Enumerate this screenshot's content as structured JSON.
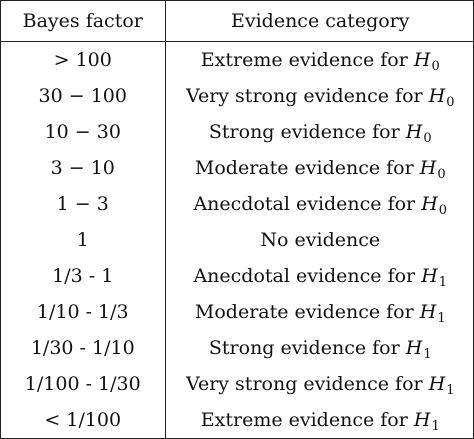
{
  "table": {
    "headers": [
      "Bayes factor",
      "Evidence category"
    ],
    "rows": [
      {
        "bf": "> 100",
        "text": "Extreme evidence for",
        "h": "H",
        "sub": "0"
      },
      {
        "bf": "30 − 100",
        "text": "Very strong evidence for",
        "h": "H",
        "sub": "0"
      },
      {
        "bf": "10 − 30",
        "text": "Strong evidence for",
        "h": "H",
        "sub": "0"
      },
      {
        "bf": "3 − 10",
        "text": "Moderate evidence for",
        "h": "H",
        "sub": "0"
      },
      {
        "bf": "1 − 3",
        "text": "Anecdotal evidence for",
        "h": "H",
        "sub": "0"
      },
      {
        "bf": "1",
        "text": "No evidence",
        "h": "",
        "sub": ""
      },
      {
        "bf": "1/3 - 1",
        "text": "Anecdotal evidence for",
        "h": "H",
        "sub": "1"
      },
      {
        "bf": "1/10 - 1/3",
        "text": "Moderate evidence for",
        "h": "H",
        "sub": "1"
      },
      {
        "bf": "1/30 - 1/10",
        "text": "Strong evidence for",
        "h": "H",
        "sub": "1"
      },
      {
        "bf": "1/100 - 1/30",
        "text": "Very strong evidence for",
        "h": "H",
        "sub": "1"
      },
      {
        "bf": "< 1/100",
        "text": "Extreme evidence for",
        "h": "H",
        "sub": "1"
      }
    ]
  }
}
